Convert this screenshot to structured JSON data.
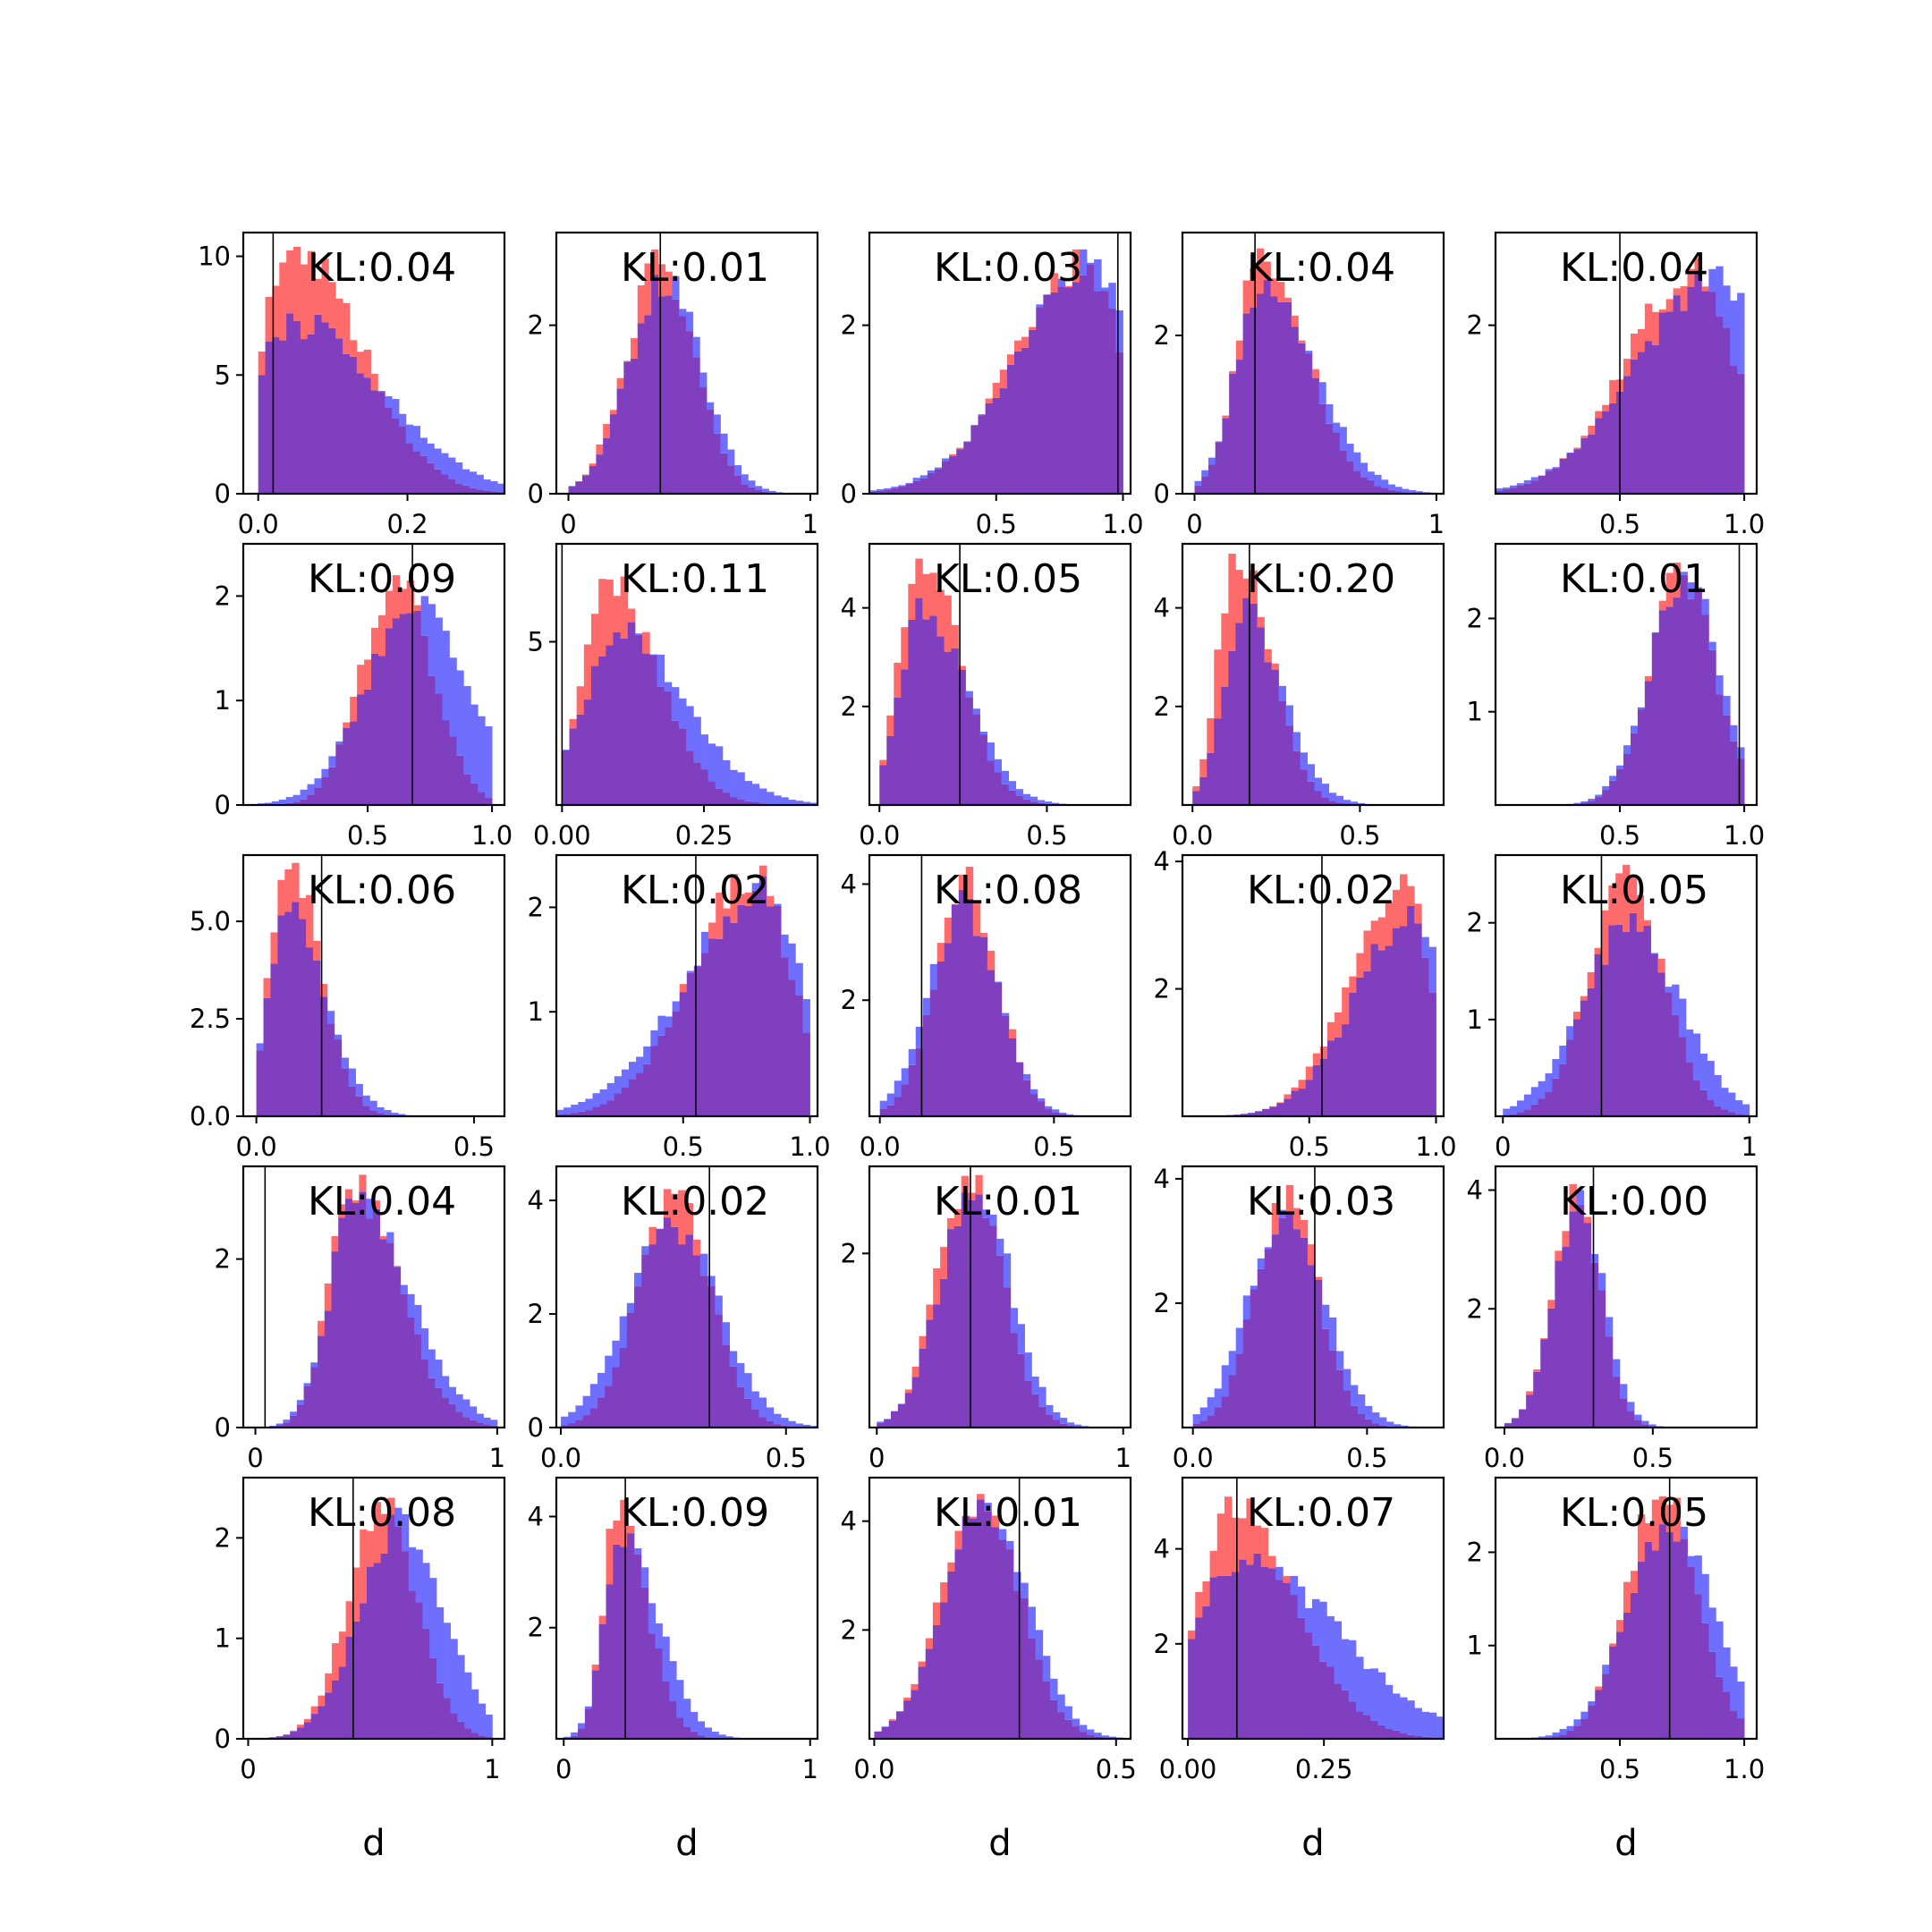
{
  "figure": {
    "xlabel": "d",
    "colors": {
      "red": "#ff6a6a",
      "blue": "#6f6fff",
      "overlap": "#7f3fbf",
      "frame": "#000000"
    }
  },
  "chart_data": [
    {
      "type": "histogram",
      "annotation": "KL:0.04",
      "xlim": [
        -0.02,
        0.33
      ],
      "ylim": [
        0,
        11
      ],
      "xticks": [
        "0.0",
        "0.2"
      ],
      "xtick_values": [
        0.0,
        0.2
      ],
      "yticks": [
        "0",
        "5",
        "10"
      ],
      "ytick_values": [
        0,
        5,
        10
      ],
      "vline": 0.02,
      "series": [
        {
          "name": "",
          "color": "red",
          "mode": "skew",
          "peak": 0.05,
          "width": 0.06,
          "max": 10.4
        },
        {
          "name": "",
          "color": "blue",
          "mode": "skew",
          "peak": 0.05,
          "width": 0.08,
          "max": 7.6
        }
      ]
    },
    {
      "type": "histogram",
      "annotation": "KL:0.01",
      "xlim": [
        -0.05,
        1.03
      ],
      "ylim": [
        0,
        3.1
      ],
      "xticks": [
        "0",
        "1"
      ],
      "xtick_values": [
        0,
        1
      ],
      "yticks": [
        "0",
        "2"
      ],
      "ytick_values": [
        0,
        2
      ],
      "vline": 0.38,
      "series": [
        {
          "name": "",
          "color": "red",
          "mode": "normal",
          "peak": 0.38,
          "width": 0.14,
          "max": 2.9
        },
        {
          "name": "",
          "color": "blue",
          "mode": "normal",
          "peak": 0.4,
          "width": 0.15,
          "max": 2.6
        }
      ]
    },
    {
      "type": "histogram",
      "annotation": "KL:0.03",
      "xlim": [
        0.0,
        1.03
      ],
      "ylim": [
        0,
        3.1
      ],
      "xticks": [
        "0.5",
        "1.0"
      ],
      "xtick_values": [
        0.5,
        1.0
      ],
      "yticks": [
        "0",
        "2"
      ],
      "ytick_values": [
        0,
        2
      ],
      "vline": 0.98,
      "series": [
        {
          "name": "",
          "color": "red",
          "mode": "leftskew",
          "peak": 0.84,
          "width": 0.2,
          "max": 2.9
        },
        {
          "name": "",
          "color": "blue",
          "mode": "leftskew",
          "peak": 0.88,
          "width": 0.22,
          "max": 2.9
        }
      ]
    },
    {
      "type": "histogram",
      "annotation": "KL:0.04",
      "xlim": [
        -0.05,
        1.03
      ],
      "ylim": [
        0,
        3.3
      ],
      "xticks": [
        "0",
        "1"
      ],
      "xtick_values": [
        0,
        1
      ],
      "yticks": [
        "0",
        "2"
      ],
      "ytick_values": [
        0,
        2
      ],
      "vline": 0.25,
      "series": [
        {
          "name": "",
          "color": "red",
          "mode": "skew",
          "peak": 0.27,
          "width": 0.13,
          "max": 3.1
        },
        {
          "name": "",
          "color": "blue",
          "mode": "skew",
          "peak": 0.28,
          "width": 0.15,
          "max": 2.7
        }
      ]
    },
    {
      "type": "histogram",
      "annotation": "KL:0.04",
      "xlim": [
        0.0,
        1.05
      ],
      "ylim": [
        0,
        3.1
      ],
      "xticks": [
        "0.5",
        "1.0"
      ],
      "xtick_values": [
        0.5,
        1.0
      ],
      "yticks": [
        "2"
      ],
      "ytick_values": [
        2
      ],
      "vline": 0.5,
      "series": [
        {
          "name": "",
          "color": "red",
          "mode": "leftskew",
          "peak": 0.8,
          "width": 0.2,
          "max": 2.8
        },
        {
          "name": "",
          "color": "blue",
          "mode": "leftskew",
          "peak": 0.9,
          "width": 0.24,
          "max": 2.7
        }
      ]
    },
    {
      "type": "histogram",
      "annotation": "KL:0.09",
      "xlim": [
        0.0,
        1.05
      ],
      "ylim": [
        0,
        2.5
      ],
      "xticks": [
        "0.5",
        "1.0"
      ],
      "xtick_values": [
        0.5,
        1.0
      ],
      "yticks": [
        "0",
        "1",
        "2"
      ],
      "ytick_values": [
        0,
        1,
        2
      ],
      "vline": 0.68,
      "series": [
        {
          "name": "",
          "color": "red",
          "mode": "normal",
          "peak": 0.62,
          "width": 0.14,
          "max": 2.2
        },
        {
          "name": "",
          "color": "blue",
          "mode": "normal",
          "peak": 0.7,
          "width": 0.2,
          "max": 2.0
        }
      ]
    },
    {
      "type": "histogram",
      "annotation": "KL:0.11",
      "xlim": [
        -0.01,
        0.45
      ],
      "ylim": [
        0,
        8.0
      ],
      "xticks": [
        "0.00",
        "0.25"
      ],
      "xtick_values": [
        0.0,
        0.25
      ],
      "yticks": [
        "5"
      ],
      "ytick_values": [
        5
      ],
      "vline": 0.0,
      "series": [
        {
          "name": "",
          "color": "red",
          "mode": "skew",
          "peak": 0.08,
          "width": 0.06,
          "max": 7.0
        },
        {
          "name": "",
          "color": "blue",
          "mode": "skew",
          "peak": 0.1,
          "width": 0.08,
          "max": 5.6
        }
      ]
    },
    {
      "type": "histogram",
      "annotation": "KL:0.05",
      "xlim": [
        -0.03,
        0.75
      ],
      "ylim": [
        0,
        5.3
      ],
      "xticks": [
        "0.0",
        "0.5"
      ],
      "xtick_values": [
        0.0,
        0.5
      ],
      "yticks": [
        "2",
        "4"
      ],
      "ytick_values": [
        2,
        4
      ],
      "vline": 0.24,
      "series": [
        {
          "name": "",
          "color": "red",
          "mode": "skew",
          "peak": 0.12,
          "width": 0.08,
          "max": 5.0
        },
        {
          "name": "",
          "color": "blue",
          "mode": "skew",
          "peak": 0.13,
          "width": 0.09,
          "max": 4.2
        }
      ]
    },
    {
      "type": "histogram",
      "annotation": "KL:0.20",
      "xlim": [
        -0.03,
        0.75
      ],
      "ylim": [
        0,
        5.3
      ],
      "xticks": [
        "0.0",
        "0.5"
      ],
      "xtick_values": [
        0.0,
        0.5
      ],
      "yticks": [
        "2",
        "4"
      ],
      "ytick_values": [
        2,
        4
      ],
      "vline": 0.17,
      "series": [
        {
          "name": "",
          "color": "red",
          "mode": "skew",
          "peak": 0.13,
          "width": 0.07,
          "max": 5.1
        },
        {
          "name": "",
          "color": "blue",
          "mode": "skew",
          "peak": 0.15,
          "width": 0.08,
          "max": 4.2
        }
      ]
    },
    {
      "type": "histogram",
      "annotation": "KL:0.01",
      "xlim": [
        0.0,
        1.05
      ],
      "ylim": [
        0,
        2.8
      ],
      "xticks": [
        "0.5",
        "1.0"
      ],
      "xtick_values": [
        0.5,
        1.0
      ],
      "yticks": [
        "1",
        "2"
      ],
      "ytick_values": [
        1,
        2
      ],
      "vline": 0.98,
      "series": [
        {
          "name": "",
          "color": "red",
          "mode": "normal",
          "peak": 0.75,
          "width": 0.13,
          "max": 2.6
        },
        {
          "name": "",
          "color": "blue",
          "mode": "normal",
          "peak": 0.76,
          "width": 0.14,
          "max": 2.5
        }
      ]
    },
    {
      "type": "histogram",
      "annotation": "KL:0.06",
      "xlim": [
        -0.03,
        0.57
      ],
      "ylim": [
        0,
        6.7
      ],
      "xticks": [
        "0.0",
        "0.5"
      ],
      "xtick_values": [
        0.0,
        0.5
      ],
      "yticks": [
        "0.0",
        "2.5",
        "5.0"
      ],
      "ytick_values": [
        0.0,
        2.5,
        5.0
      ],
      "vline": 0.15,
      "series": [
        {
          "name": "",
          "color": "red",
          "mode": "skew",
          "peak": 0.07,
          "width": 0.05,
          "max": 6.5
        },
        {
          "name": "",
          "color": "blue",
          "mode": "skew",
          "peak": 0.07,
          "width": 0.06,
          "max": 5.5
        }
      ]
    },
    {
      "type": "histogram",
      "annotation": "KL:0.02",
      "xlim": [
        0.0,
        1.03
      ],
      "ylim": [
        0,
        2.5
      ],
      "xticks": [
        "0.5",
        "1.0"
      ],
      "xtick_values": [
        0.5,
        1.0
      ],
      "yticks": [
        "1",
        "2"
      ],
      "ytick_values": [
        1,
        2
      ],
      "vline": 0.55,
      "series": [
        {
          "name": "",
          "color": "red",
          "mode": "leftskew",
          "peak": 0.78,
          "width": 0.18,
          "max": 2.4
        },
        {
          "name": "",
          "color": "blue",
          "mode": "leftskew",
          "peak": 0.8,
          "width": 0.22,
          "max": 2.3
        }
      ]
    },
    {
      "type": "histogram",
      "annotation": "KL:0.08",
      "xlim": [
        -0.03,
        0.72
      ],
      "ylim": [
        0,
        4.5
      ],
      "xticks": [
        "0.0",
        "0.5"
      ],
      "xtick_values": [
        0.0,
        0.5
      ],
      "yticks": [
        "2",
        "4"
      ],
      "ytick_values": [
        2,
        4
      ],
      "vline": 0.12,
      "series": [
        {
          "name": "",
          "color": "red",
          "mode": "normal",
          "peak": 0.25,
          "width": 0.09,
          "max": 4.3
        },
        {
          "name": "",
          "color": "blue",
          "mode": "normal",
          "peak": 0.24,
          "width": 0.1,
          "max": 3.9
        }
      ]
    },
    {
      "type": "histogram",
      "annotation": "KL:0.02",
      "xlim": [
        0.0,
        1.03
      ],
      "ylim": [
        0,
        4.1
      ],
      "xticks": [
        "0.5",
        "1.0"
      ],
      "xtick_values": [
        0.5,
        1.0
      ],
      "yticks": [
        "2",
        "4"
      ],
      "ytick_values": [
        2,
        4
      ],
      "vline": 0.55,
      "series": [
        {
          "name": "",
          "color": "red",
          "mode": "leftskew",
          "peak": 0.86,
          "width": 0.15,
          "max": 3.8
        },
        {
          "name": "",
          "color": "blue",
          "mode": "leftskew",
          "peak": 0.92,
          "width": 0.17,
          "max": 3.3
        }
      ]
    },
    {
      "type": "histogram",
      "annotation": "KL:0.05",
      "xlim": [
        -0.03,
        1.03
      ],
      "ylim": [
        0,
        2.7
      ],
      "xticks": [
        "0",
        "1"
      ],
      "xtick_values": [
        0,
        1
      ],
      "yticks": [
        "1",
        "2"
      ],
      "ytick_values": [
        1,
        2
      ],
      "vline": 0.4,
      "series": [
        {
          "name": "",
          "color": "red",
          "mode": "normal",
          "peak": 0.5,
          "width": 0.15,
          "max": 2.6
        },
        {
          "name": "",
          "color": "blue",
          "mode": "normal",
          "peak": 0.52,
          "width": 0.2,
          "max": 2.1
        }
      ]
    },
    {
      "type": "histogram",
      "annotation": "KL:0.04",
      "xlim": [
        -0.05,
        1.03
      ],
      "ylim": [
        0,
        3.1
      ],
      "xticks": [
        "0",
        "1"
      ],
      "xtick_values": [
        0,
        1
      ],
      "yticks": [
        "0",
        "2"
      ],
      "ytick_values": [
        0,
        2
      ],
      "vline": 0.04,
      "series": [
        {
          "name": "",
          "color": "red",
          "mode": "skew",
          "peak": 0.4,
          "width": 0.13,
          "max": 3.0
        },
        {
          "name": "",
          "color": "blue",
          "mode": "skew",
          "peak": 0.42,
          "width": 0.15,
          "max": 2.8
        }
      ]
    },
    {
      "type": "histogram",
      "annotation": "KL:0.02",
      "xlim": [
        -0.01,
        0.57
      ],
      "ylim": [
        0,
        4.6
      ],
      "xticks": [
        "0.0",
        "0.5"
      ],
      "xtick_values": [
        0.0,
        0.5
      ],
      "yticks": [
        "0",
        "2",
        "4"
      ],
      "ytick_values": [
        0,
        2,
        4
      ],
      "vline": 0.33,
      "series": [
        {
          "name": "",
          "color": "red",
          "mode": "normal",
          "peak": 0.25,
          "width": 0.08,
          "max": 4.2
        },
        {
          "name": "",
          "color": "blue",
          "mode": "normal",
          "peak": 0.25,
          "width": 0.1,
          "max": 3.7
        }
      ]
    },
    {
      "type": "histogram",
      "annotation": "KL:0.01",
      "xlim": [
        -0.03,
        1.03
      ],
      "ylim": [
        0,
        3.0
      ],
      "xticks": [
        "0",
        "1"
      ],
      "xtick_values": [
        0,
        1
      ],
      "yticks": [
        "2"
      ],
      "ytick_values": [
        2
      ],
      "vline": 0.38,
      "series": [
        {
          "name": "",
          "color": "red",
          "mode": "normal",
          "peak": 0.38,
          "width": 0.13,
          "max": 2.9
        },
        {
          "name": "",
          "color": "blue",
          "mode": "normal",
          "peak": 0.4,
          "width": 0.14,
          "max": 2.7
        }
      ]
    },
    {
      "type": "histogram",
      "annotation": "KL:0.03",
      "xlim": [
        -0.03,
        0.72
      ],
      "ylim": [
        0,
        4.2
      ],
      "xticks": [
        "0.0",
        "0.5"
      ],
      "xtick_values": [
        0.0,
        0.5
      ],
      "yticks": [
        "2",
        "4"
      ],
      "ytick_values": [
        2,
        4
      ],
      "vline": 0.35,
      "series": [
        {
          "name": "",
          "color": "red",
          "mode": "normal",
          "peak": 0.27,
          "width": 0.09,
          "max": 3.9
        },
        {
          "name": "",
          "color": "blue",
          "mode": "normal",
          "peak": 0.27,
          "width": 0.11,
          "max": 3.5
        }
      ]
    },
    {
      "type": "histogram",
      "annotation": "KL:0.00",
      "xlim": [
        -0.03,
        0.85
      ],
      "ylim": [
        0,
        4.4
      ],
      "xticks": [
        "0.0",
        "0.5"
      ],
      "xtick_values": [
        0.0,
        0.5
      ],
      "yticks": [
        "2",
        "4"
      ],
      "ytick_values": [
        2,
        4
      ],
      "vline": 0.3,
      "series": [
        {
          "name": "",
          "color": "red",
          "mode": "normal",
          "peak": 0.24,
          "width": 0.08,
          "max": 4.1
        },
        {
          "name": "",
          "color": "blue",
          "mode": "normal",
          "peak": 0.25,
          "width": 0.085,
          "max": 4.0
        }
      ]
    },
    {
      "type": "histogram",
      "annotation": "KL:0.08",
      "xlim": [
        -0.02,
        1.05
      ],
      "ylim": [
        0,
        2.6
      ],
      "xticks": [
        "0",
        "1"
      ],
      "xtick_values": [
        0,
        1
      ],
      "yticks": [
        "0",
        "1",
        "2"
      ],
      "ytick_values": [
        0,
        1,
        2
      ],
      "vline": 0.43,
      "series": [
        {
          "name": "",
          "color": "red",
          "mode": "normal",
          "peak": 0.55,
          "width": 0.14,
          "max": 2.4
        },
        {
          "name": "",
          "color": "blue",
          "mode": "normal",
          "peak": 0.63,
          "width": 0.17,
          "max": 2.3
        }
      ]
    },
    {
      "type": "histogram",
      "annotation": "KL:0.09",
      "xlim": [
        -0.03,
        1.03
      ],
      "ylim": [
        0,
        4.7
      ],
      "xticks": [
        "0",
        "1"
      ],
      "xtick_values": [
        0,
        1
      ],
      "yticks": [
        "2",
        "4"
      ],
      "ytick_values": [
        2,
        4
      ],
      "vline": 0.25,
      "series": [
        {
          "name": "",
          "color": "red",
          "mode": "skew",
          "peak": 0.22,
          "width": 0.08,
          "max": 4.3
        },
        {
          "name": "",
          "color": "blue",
          "mode": "skew",
          "peak": 0.24,
          "width": 0.1,
          "max": 3.7
        }
      ]
    },
    {
      "type": "histogram",
      "annotation": "KL:0.01",
      "xlim": [
        -0.01,
        0.53
      ],
      "ylim": [
        0,
        4.8
      ],
      "xticks": [
        "0.0",
        "0.5"
      ],
      "xtick_values": [
        0.0,
        0.5
      ],
      "yticks": [
        "2",
        "4"
      ],
      "ytick_values": [
        2,
        4
      ],
      "vline": 0.3,
      "series": [
        {
          "name": "",
          "color": "red",
          "mode": "normal",
          "peak": 0.22,
          "width": 0.08,
          "max": 4.5
        },
        {
          "name": "",
          "color": "blue",
          "mode": "normal",
          "peak": 0.23,
          "width": 0.085,
          "max": 4.4
        }
      ]
    },
    {
      "type": "histogram",
      "annotation": "KL:0.07",
      "xlim": [
        -0.01,
        0.47
      ],
      "ylim": [
        0,
        5.5
      ],
      "xticks": [
        "0.00",
        "0.25"
      ],
      "xtick_values": [
        0.0,
        0.25
      ],
      "yticks": [
        "2",
        "4"
      ],
      "ytick_values": [
        2,
        4
      ],
      "vline": 0.09,
      "series": [
        {
          "name": "",
          "color": "red",
          "mode": "skew",
          "peak": 0.08,
          "width": 0.08,
          "max": 5.1
        },
        {
          "name": "",
          "color": "blue",
          "mode": "skew",
          "peak": 0.1,
          "width": 0.12,
          "max": 3.9
        }
      ]
    },
    {
      "type": "histogram",
      "annotation": "KL:0.05",
      "xlim": [
        0.0,
        1.05
      ],
      "ylim": [
        0,
        2.8
      ],
      "xticks": [
        "0.5",
        "1.0"
      ],
      "xtick_values": [
        0.5,
        1.0
      ],
      "yticks": [
        "1",
        "2"
      ],
      "ytick_values": [
        1,
        2
      ],
      "vline": 0.7,
      "series": [
        {
          "name": "",
          "color": "red",
          "mode": "normal",
          "peak": 0.67,
          "width": 0.14,
          "max": 2.6
        },
        {
          "name": "",
          "color": "blue",
          "mode": "normal",
          "peak": 0.7,
          "width": 0.17,
          "max": 2.3
        }
      ]
    }
  ]
}
